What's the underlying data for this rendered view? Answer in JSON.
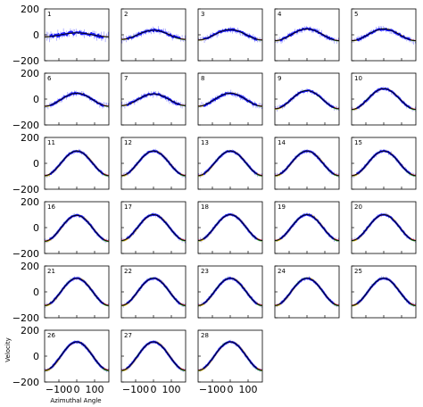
{
  "chart_data": {
    "type": "line",
    "layout": "small-multiples grid, 5 columns x 6 rows, 28 panels",
    "xlabel": "Azimuthal Angle",
    "ylabel": "Velocity",
    "xlim": [
      -180,
      180
    ],
    "ylim": [
      -200,
      200
    ],
    "xticks": [
      -100,
      0,
      100
    ],
    "xtick_labels": [
      "−100",
      "0",
      "100"
    ],
    "yticks": [
      -200,
      0,
      200
    ],
    "ytick_labels": [
      "−200",
      "0",
      "200"
    ],
    "model": "sinusoid v = A * cos(angle) + offset",
    "colors": {
      "data": "#1a1aff",
      "data_band": "#7f7fff",
      "error_bars": "#8888ff",
      "model_fit": "#000000",
      "model_alt1": "#33aa33",
      "model_alt2": "#cc3333",
      "model_alt3": "#ddaa00"
    },
    "panels": [
      {
        "id": "1",
        "amplitude": 15,
        "offset": 0
      },
      {
        "id": "2",
        "amplitude": 35,
        "offset": 0
      },
      {
        "id": "3",
        "amplitude": 40,
        "offset": 0
      },
      {
        "id": "4",
        "amplitude": 45,
        "offset": 0
      },
      {
        "id": "5",
        "amplitude": 45,
        "offset": 0
      },
      {
        "id": "6",
        "amplitude": 50,
        "offset": -5
      },
      {
        "id": "7",
        "amplitude": 45,
        "offset": -5
      },
      {
        "id": "8",
        "amplitude": 50,
        "offset": -5
      },
      {
        "id": "9",
        "amplitude": 70,
        "offset": -5
      },
      {
        "id": "10",
        "amplitude": 80,
        "offset": 0
      },
      {
        "id": "11",
        "amplitude": 95,
        "offset": 0
      },
      {
        "id": "12",
        "amplitude": 95,
        "offset": 0
      },
      {
        "id": "13",
        "amplitude": 95,
        "offset": 0
      },
      {
        "id": "14",
        "amplitude": 95,
        "offset": 0
      },
      {
        "id": "15",
        "amplitude": 95,
        "offset": 0
      },
      {
        "id": "16",
        "amplitude": 100,
        "offset": -5
      },
      {
        "id": "17",
        "amplitude": 100,
        "offset": 0
      },
      {
        "id": "18",
        "amplitude": 100,
        "offset": 0
      },
      {
        "id": "19",
        "amplitude": 100,
        "offset": 0
      },
      {
        "id": "20",
        "amplitude": 100,
        "offset": 0
      },
      {
        "id": "21",
        "amplitude": 105,
        "offset": 0
      },
      {
        "id": "22",
        "amplitude": 105,
        "offset": 0
      },
      {
        "id": "23",
        "amplitude": 105,
        "offset": 0
      },
      {
        "id": "24",
        "amplitude": 105,
        "offset": 0
      },
      {
        "id": "25",
        "amplitude": 105,
        "offset": 0
      },
      {
        "id": "26",
        "amplitude": 110,
        "offset": 0
      },
      {
        "id": "27",
        "amplitude": 110,
        "offset": 0
      },
      {
        "id": "28",
        "amplitude": 110,
        "offset": 0
      }
    ]
  }
}
